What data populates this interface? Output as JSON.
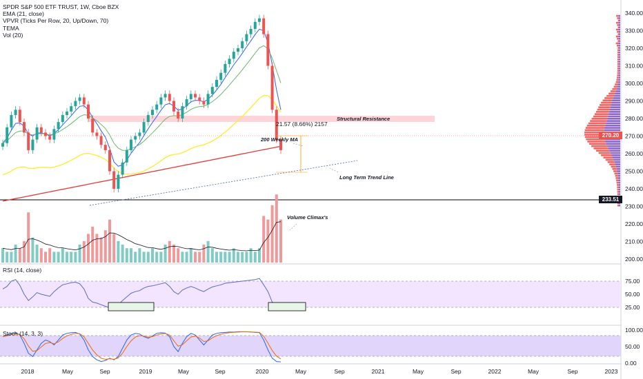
{
  "legend": {
    "title": "SPDR S&P 500 ETF TRUST, 1W, Cboe BZX",
    "ema": "EMA (21, close)",
    "vpvr": "VPVR (Ticks Per Row, 20, Up/Down, 70)",
    "tema": "TEMA",
    "vol": "Vol (20)"
  },
  "panes": {
    "rsi_label": "RSI (14, close)",
    "stoch_label": "Stoch (14, 3, 3)"
  },
  "annotations": {
    "structural_resistance": "Structural Resistance",
    "measure": "21.57 (8.66%) 2157",
    "weekly_ma": "200 Weekly MA",
    "trend_line": "Long Term Trend Line",
    "volume_climax": "Volume Climax's"
  },
  "price_tags": {
    "current": "270.20",
    "line": "233.51"
  },
  "colors": {
    "up": "#26a69a",
    "down": "#ef5350",
    "ema": "#2962ff",
    "ma200": "#e53935",
    "ma_yellow": "#ffeb3b",
    "rsi_band": "#f3e5ff",
    "stoch_band": "#e1d5fb"
  },
  "chart_data": {
    "type": "candlestick",
    "price_axis": [
      "340.00",
      "330.00",
      "320.00",
      "310.00",
      "300.00",
      "290.00",
      "280.00",
      "270.00",
      "260.00",
      "250.00",
      "240.00",
      "230.00",
      "220.00",
      "210.00",
      "200.00"
    ],
    "rsi_axis": [
      "75.00",
      "50.00",
      "25.00"
    ],
    "stoch_axis": [
      "100.00",
      "50.00",
      "0.00"
    ],
    "time_axis": [
      "2018",
      "May",
      "Sep",
      "2019",
      "May",
      "Sep",
      "2020",
      "May",
      "Sep",
      "2021",
      "May",
      "Sep",
      "2022",
      "May",
      "Sep",
      "2023"
    ],
    "closes": [
      266,
      275,
      282,
      285,
      278,
      272,
      262,
      268,
      275,
      272,
      270,
      268,
      274,
      278,
      282,
      284,
      287,
      290,
      292,
      288,
      280,
      272,
      270,
      265,
      262,
      250,
      240,
      248,
      255,
      262,
      268,
      270,
      272,
      278,
      282,
      285,
      288,
      292,
      294,
      290,
      284,
      280,
      287,
      291,
      294,
      292,
      290,
      288,
      294,
      298,
      302,
      306,
      311,
      314,
      318,
      320,
      324,
      328,
      331,
      335,
      337,
      328,
      310,
      285,
      268,
      262
    ],
    "volumes": [
      4,
      3,
      3,
      5,
      4,
      6,
      14,
      7,
      5,
      4,
      3,
      4,
      3,
      3,
      4,
      3,
      3,
      3,
      5,
      6,
      8,
      10,
      8,
      7,
      9,
      12,
      8,
      6,
      5,
      4,
      4,
      3,
      4,
      3,
      3,
      4,
      3,
      3,
      5,
      6,
      5,
      4,
      3,
      3,
      4,
      3,
      3,
      5,
      6,
      4,
      3,
      3,
      3,
      3,
      4,
      3,
      3,
      3,
      4,
      3,
      4,
      13,
      12,
      16,
      19,
      12
    ],
    "rsi": [
      60,
      65,
      75,
      78,
      67,
      50,
      38,
      45,
      53,
      50,
      48,
      46,
      55,
      62,
      68,
      70,
      72,
      73,
      70,
      60,
      42,
      35,
      33,
      30,
      27,
      24,
      22,
      30,
      38,
      45,
      52,
      55,
      57,
      62,
      65,
      66,
      68,
      70,
      72,
      65,
      55,
      50,
      58,
      62,
      65,
      62,
      58,
      55,
      60,
      64,
      66,
      68,
      71,
      72,
      73,
      74,
      75,
      76,
      77,
      78,
      80,
      68,
      55,
      35,
      30,
      28
    ],
    "stoch": [
      80,
      85,
      90,
      92,
      85,
      60,
      30,
      20,
      40,
      60,
      70,
      65,
      55,
      70,
      85,
      90,
      92,
      93,
      88,
      70,
      40,
      20,
      10,
      5,
      8,
      15,
      10,
      20,
      45,
      70,
      85,
      90,
      88,
      80,
      75,
      82,
      90,
      92,
      91,
      80,
      50,
      35,
      60,
      80,
      90,
      85,
      70,
      55,
      70,
      85,
      90,
      92,
      93,
      94,
      94,
      95,
      95,
      95,
      94,
      93,
      92,
      70,
      40,
      15,
      5,
      4
    ],
    "title": "SPDR S&P 500 ETF TRUST, 1W, Cboe BZX"
  }
}
